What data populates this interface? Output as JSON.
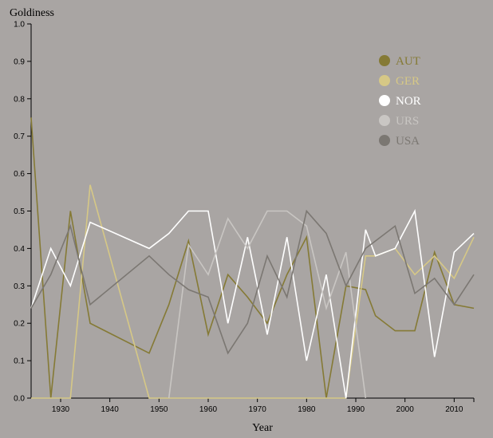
{
  "chart_data": {
    "type": "line",
    "ylabel": "Goldiness",
    "xlabel": "Year",
    "xlim": [
      1924,
      2014
    ],
    "ylim": [
      0,
      1
    ],
    "x_ticks": [
      "1930",
      "1940",
      "1950",
      "1960",
      "1970",
      "1980",
      "1990",
      "2000",
      "2010"
    ],
    "y_ticks": [
      "0.0",
      "0.1",
      "0.2",
      "0.3",
      "0.4",
      "0.5",
      "0.6",
      "0.7",
      "0.8",
      "0.9",
      "1.0"
    ],
    "legend_position": "top-right",
    "grid": false,
    "series": [
      {
        "name": "AUT",
        "color": "#857a35",
        "x": [
          1924,
          1928,
          1932,
          1936,
          1948,
          1952,
          1956,
          1960,
          1964,
          1968,
          1972,
          1976,
          1980,
          1984,
          1988,
          1992,
          1994,
          1998,
          2002,
          2006,
          2010,
          2014
        ],
        "y": [
          0.75,
          0.0,
          0.5,
          0.2,
          0.12,
          0.25,
          0.42,
          0.17,
          0.33,
          0.27,
          0.2,
          0.33,
          0.43,
          0.0,
          0.3,
          0.29,
          0.22,
          0.18,
          0.18,
          0.39,
          0.25,
          0.24
        ]
      },
      {
        "name": "GER",
        "color": "#d6c886",
        "x": [
          1924,
          1928,
          1932,
          1936,
          1948,
          1952,
          1956,
          1960,
          1964,
          1968,
          1972,
          1976,
          1980,
          1984,
          1988,
          1992,
          1994,
          1998,
          2002,
          2006,
          2010,
          2014
        ],
        "y": [
          0.0,
          0.0,
          0.0,
          0.57,
          0.0,
          0.0,
          0.0,
          0.0,
          0.0,
          0.0,
          0.0,
          0.0,
          0.0,
          0.0,
          0.0,
          0.38,
          0.38,
          0.4,
          0.33,
          0.38,
          0.32,
          0.43
        ]
      },
      {
        "name": "NOR",
        "color": "#ffffff",
        "x": [
          1924,
          1928,
          1932,
          1936,
          1948,
          1952,
          1956,
          1960,
          1964,
          1968,
          1972,
          1976,
          1980,
          1984,
          1988,
          1992,
          1994,
          1998,
          2002,
          2006,
          2010,
          2014
        ],
        "y": [
          0.24,
          0.4,
          0.3,
          0.47,
          0.4,
          0.44,
          0.5,
          0.5,
          0.2,
          0.43,
          0.17,
          0.43,
          0.1,
          0.33,
          0.0,
          0.45,
          0.38,
          0.4,
          0.5,
          0.11,
          0.39,
          0.44
        ]
      },
      {
        "name": "URS",
        "color": "#c9c6c3",
        "x": [
          1952,
          1956,
          1960,
          1964,
          1968,
          1972,
          1976,
          1980,
          1984,
          1988,
          1992
        ],
        "y": [
          0.0,
          0.41,
          0.33,
          0.48,
          0.4,
          0.5,
          0.5,
          0.46,
          0.24,
          0.39,
          0.0
        ]
      },
      {
        "name": "USA",
        "color": "#7b7772",
        "x": [
          1924,
          1928,
          1932,
          1936,
          1948,
          1952,
          1956,
          1960,
          1964,
          1968,
          1972,
          1976,
          1980,
          1984,
          1988,
          1992,
          1994,
          1998,
          2002,
          2006,
          2010,
          2014
        ],
        "y": [
          0.24,
          0.33,
          0.46,
          0.25,
          0.38,
          0.33,
          0.29,
          0.27,
          0.12,
          0.2,
          0.38,
          0.27,
          0.5,
          0.44,
          0.3,
          0.4,
          0.42,
          0.46,
          0.28,
          0.32,
          0.25,
          0.33
        ]
      }
    ]
  }
}
